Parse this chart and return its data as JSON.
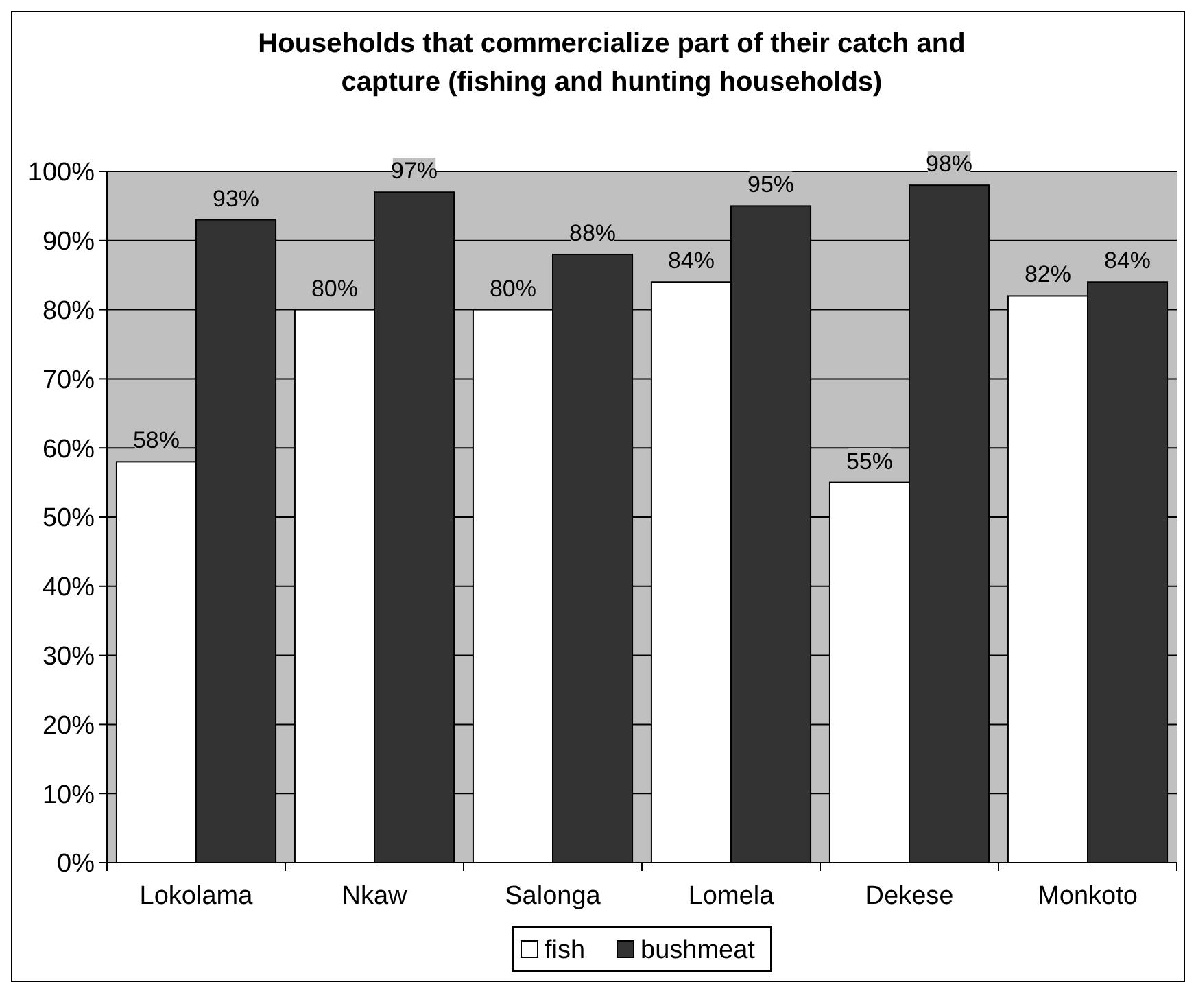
{
  "chart_data": {
    "type": "bar",
    "title": "Households that commercialize part of their catch and capture (fishing and hunting households)",
    "categories": [
      "Lokolama",
      "Nkaw",
      "Salonga",
      "Lomela",
      "Dekese",
      "Monkoto"
    ],
    "series": [
      {
        "name": "fish",
        "color": "#ffffff",
        "values": [
          58,
          80,
          80,
          84,
          55,
          82
        ],
        "value_labels": [
          "58%",
          "80%",
          "80%",
          "84%",
          "55%",
          "82%"
        ]
      },
      {
        "name": "bushmeat",
        "color": "#333333",
        "values": [
          93,
          97,
          88,
          95,
          98,
          84
        ],
        "value_labels": [
          "93%",
          "97%",
          "88%",
          "95%",
          "98%",
          "84%"
        ]
      }
    ],
    "ylim": [
      0,
      100
    ],
    "yticks": [
      {
        "value": 0,
        "label": "0%"
      },
      {
        "value": 10,
        "label": "10%"
      },
      {
        "value": 20,
        "label": "20%"
      },
      {
        "value": 30,
        "label": "30%"
      },
      {
        "value": 40,
        "label": "40%"
      },
      {
        "value": 50,
        "label": "50%"
      },
      {
        "value": 60,
        "label": "60%"
      },
      {
        "value": 70,
        "label": "70%"
      },
      {
        "value": 80,
        "label": "80%"
      },
      {
        "value": 90,
        "label": "90%"
      },
      {
        "value": 100,
        "label": "100%"
      }
    ],
    "grid": "y",
    "legend": "bottom"
  }
}
